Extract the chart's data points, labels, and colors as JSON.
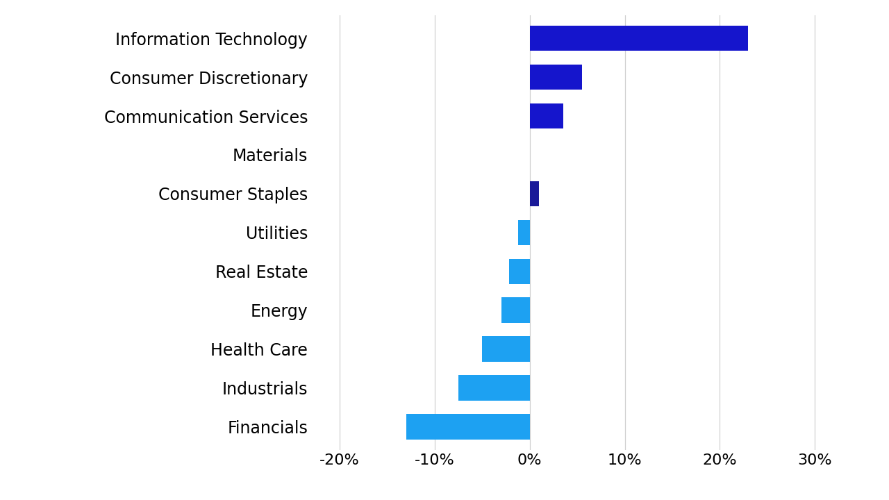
{
  "categories": [
    "Information Technology",
    "Consumer Discretionary",
    "Communication Services",
    "Materials",
    "Consumer Staples",
    "Utilities",
    "Real Estate",
    "Energy",
    "Health Care",
    "Industrials",
    "Financials"
  ],
  "values": [
    23.0,
    5.5,
    3.5,
    0.0,
    1.0,
    -1.2,
    -2.2,
    -3.0,
    -5.0,
    -7.5,
    -13.0
  ],
  "bar_colors": [
    "#1515cc",
    "#1515cc",
    "#1515cc",
    "#1515cc",
    "#1a1a99",
    "#1da1f2",
    "#1da1f2",
    "#1da1f2",
    "#1da1f2",
    "#1da1f2",
    "#1da1f2"
  ],
  "xlim": [
    -23,
    35
  ],
  "xticks": [
    -20,
    -10,
    0,
    10,
    20,
    30
  ],
  "xtick_labels": [
    "-20%",
    "-10%",
    "0%",
    "10%",
    "20%",
    "30%"
  ],
  "background_color": "#ffffff",
  "gridline_color": "#d0d0d0",
  "label_fontsize": 17,
  "tick_fontsize": 16,
  "bar_height": 0.65
}
